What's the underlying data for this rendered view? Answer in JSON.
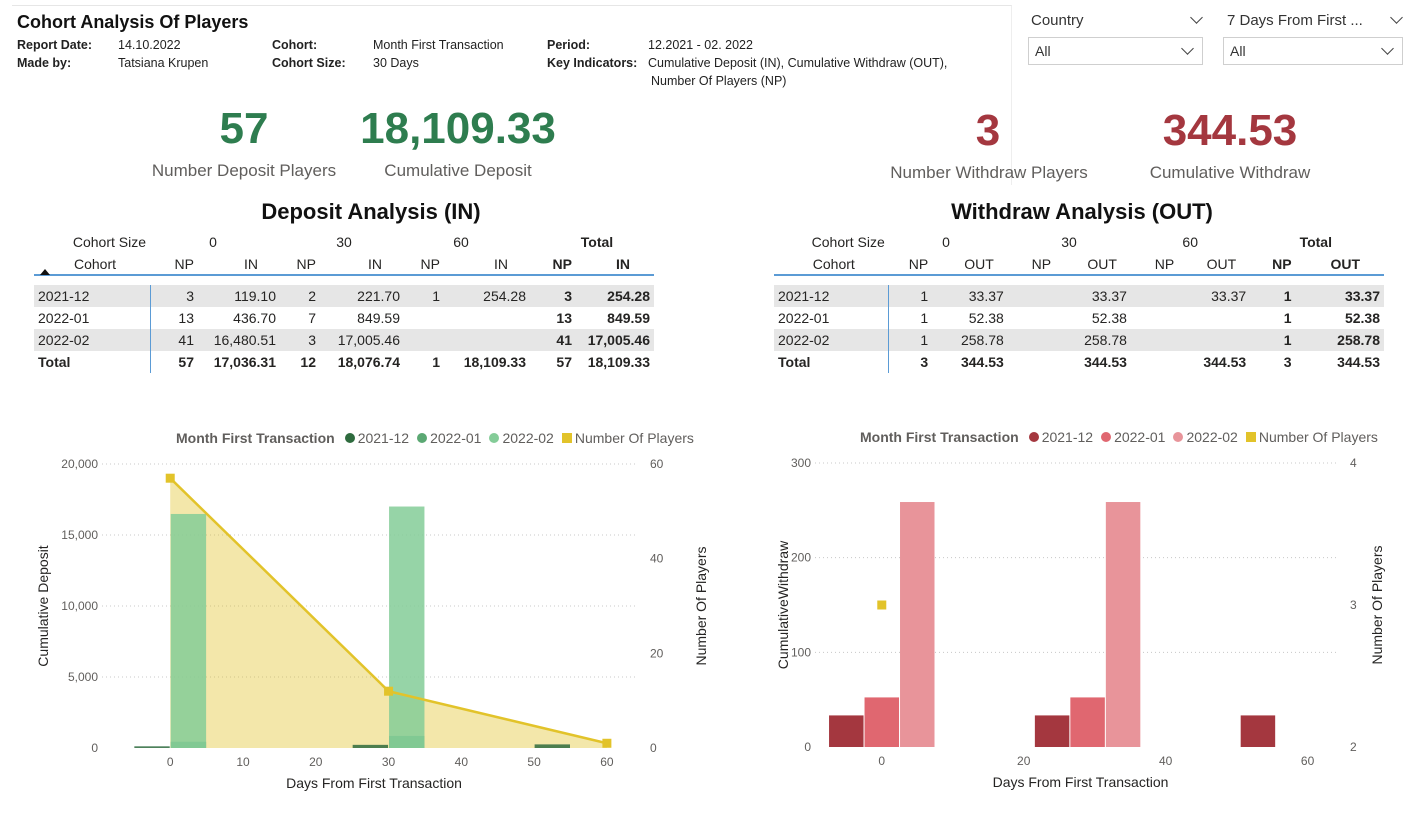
{
  "header": {
    "title": "Cohort Analysis Of Players",
    "report_date_label": "Report Date:",
    "report_date": "14.10.2022",
    "made_by_label": "Made by:",
    "made_by": "Tatsiana Krupen",
    "cohort_label": "Cohort:",
    "cohort": "Month First Transaction",
    "cohort_size_label": "Cohort Size:",
    "cohort_size": "30 Days",
    "period_label": "Period:",
    "period": "12.2021 - 02. 2022",
    "key_indicators_label": "Key Indicators:",
    "key_indicators_line1": "Cumulative Deposit (IN), Cumulative Withdraw (OUT),",
    "key_indicators_line2": "Number Of Players (NP)"
  },
  "slicers": [
    {
      "label": "Country",
      "value": "All"
    },
    {
      "label": "7 Days From First ...",
      "value": "All"
    }
  ],
  "kpis": {
    "deposit_players": {
      "value": "57",
      "label": "Number Deposit Players"
    },
    "cumulative_deposit": {
      "value": "18,109.33",
      "label": "Cumulative Deposit"
    },
    "withdraw_players": {
      "value": "3",
      "label": "Number Withdraw Players"
    },
    "cumulative_withdraw": {
      "value": "344.53",
      "label": "Cumulative Withdraw"
    }
  },
  "deposit_table": {
    "title": "Deposit Analysis (IN)",
    "cohort_size_label": "Cohort Size",
    "cohort_label": "Cohort",
    "sizes": [
      "0",
      "30",
      "60"
    ],
    "total_label": "Total",
    "np_label": "NP",
    "metric_label": "IN",
    "rows": [
      {
        "cohort": "2021-12",
        "np0": "3",
        "v0": "119.10",
        "np30": "2",
        "v30": "221.70",
        "np60": "1",
        "v60": "254.28",
        "npt": "3",
        "vt": "254.28"
      },
      {
        "cohort": "2022-01",
        "np0": "13",
        "v0": "436.70",
        "np30": "7",
        "v30": "849.59",
        "np60": "",
        "v60": "",
        "npt": "13",
        "vt": "849.59"
      },
      {
        "cohort": "2022-02",
        "np0": "41",
        "v0": "16,480.51",
        "np30": "3",
        "v30": "17,005.46",
        "np60": "",
        "v60": "",
        "npt": "41",
        "vt": "17,005.46"
      }
    ],
    "total": {
      "cohort": "Total",
      "np0": "57",
      "v0": "17,036.31",
      "np30": "12",
      "v30": "18,076.74",
      "np60": "1",
      "v60": "18,109.33",
      "npt": "57",
      "vt": "18,109.33"
    }
  },
  "withdraw_table": {
    "title": "Withdraw Analysis (OUT)",
    "cohort_size_label": "Cohort Size",
    "cohort_label": "Cohort",
    "sizes": [
      "0",
      "30",
      "60"
    ],
    "total_label": "Total",
    "np_label": "NP",
    "metric_label": "OUT",
    "rows": [
      {
        "cohort": "2021-12",
        "np0": "1",
        "v0": "33.37",
        "np30": "",
        "v30": "33.37",
        "np60": "",
        "v60": "33.37",
        "npt": "1",
        "vt": "33.37"
      },
      {
        "cohort": "2022-01",
        "np0": "1",
        "v0": "52.38",
        "np30": "",
        "v30": "52.38",
        "np60": "",
        "v60": "",
        "npt": "1",
        "vt": "52.38"
      },
      {
        "cohort": "2022-02",
        "np0": "1",
        "v0": "258.78",
        "np30": "",
        "v30": "258.78",
        "np60": "",
        "v60": "",
        "npt": "1",
        "vt": "258.78"
      }
    ],
    "total": {
      "cohort": "Total",
      "np0": "3",
      "v0": "344.53",
      "np30": "",
      "v30": "344.53",
      "np60": "",
      "v60": "344.53",
      "npt": "3",
      "vt": "344.53"
    }
  },
  "chart_data": [
    {
      "type": "bar",
      "legend_title": "Month First Transaction",
      "legend_position": "top",
      "xlabel": "Days From First Transaction",
      "ylabel": "Cumulative Deposit",
      "y2label": "Number Of Players",
      "xlim": [
        -8,
        64
      ],
      "xticks": [
        0,
        10,
        20,
        30,
        40,
        50,
        60
      ],
      "ylim": [
        0,
        20000
      ],
      "yticks": [
        0,
        5000,
        10000,
        15000,
        20000
      ],
      "ytick_labels": [
        "0",
        "5,000",
        "10,000",
        "15,000",
        "20,000"
      ],
      "y2lim": [
        0,
        60
      ],
      "y2ticks": [
        0,
        20,
        40,
        60
      ],
      "grid": true,
      "bin_width": 5,
      "series": [
        {
          "name": "2021-12",
          "color": "#2e6b3e",
          "x": [
            -2.5,
            27.5,
            52.5
          ],
          "values": [
            119.1,
            221.7,
            254.28
          ]
        },
        {
          "name": "2022-01",
          "color": "#5ba873",
          "x": [
            2.5,
            32.5
          ],
          "values": [
            436.7,
            849.59
          ]
        },
        {
          "name": "2022-02",
          "color": "#84cc98",
          "x": [
            2.5,
            32.5
          ],
          "values": [
            16480.51,
            17005.46
          ]
        }
      ],
      "line_series": {
        "name": "Number Of Players",
        "color": "#e2c32a",
        "x": [
          0,
          30,
          60
        ],
        "values": [
          57,
          12,
          1
        ]
      }
    },
    {
      "type": "bar",
      "legend_title": "Month First Transaction",
      "legend_position": "top",
      "xlabel": "Days From First Transaction",
      "ylabel": "CumulativeWithdraw",
      "y2label": "Number Of Players",
      "xlim": [
        -8,
        64
      ],
      "xticks": [
        0,
        20,
        40,
        60
      ],
      "ylim": [
        0,
        300
      ],
      "yticks": [
        0,
        100,
        200,
        300
      ],
      "ytick_labels": [
        "0",
        "100",
        "200",
        "300"
      ],
      "y2lim": [
        2,
        4
      ],
      "y2ticks": [
        2,
        3,
        4
      ],
      "grid": true,
      "bin_width": 5,
      "series": [
        {
          "name": "2021-12",
          "color": "#a4373f",
          "x": [
            -5,
            24,
            53
          ],
          "values": [
            33.37,
            33.37,
            33.37
          ]
        },
        {
          "name": "2022-01",
          "color": "#e06770",
          "x": [
            0,
            29
          ],
          "values": [
            52.38,
            52.38
          ]
        },
        {
          "name": "2022-02",
          "color": "#e8949a",
          "x": [
            5,
            34
          ],
          "values": [
            258.78,
            258.78
          ]
        }
      ],
      "line_series": {
        "name": "Number Of Players",
        "color": "#e2c32a",
        "x": [
          0
        ],
        "values": [
          3
        ]
      }
    }
  ]
}
